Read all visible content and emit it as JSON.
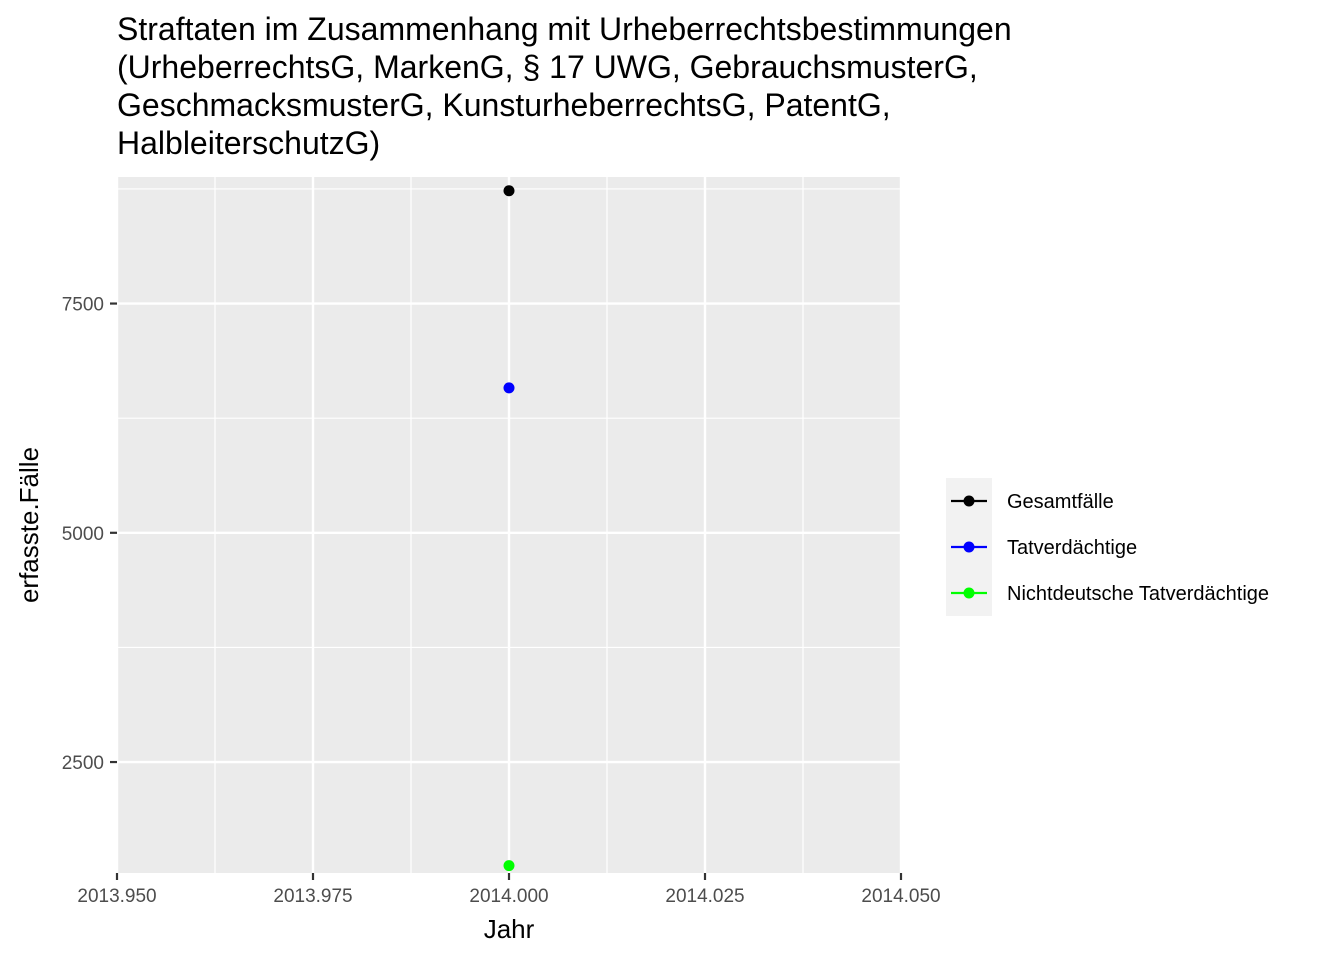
{
  "chart_data": {
    "type": "scatter",
    "title_lines": [
      "Straftaten im Zusammenhang mit Urheberrechtsbestimmungen",
      "(UrheberrechtsG, MarkenG, § 17 UWG, GebrauchsmusterG,",
      "GeschmacksmusterG, KunsturheberrechtsG, PatentG,",
      "HalbleiterschutzG)"
    ],
    "xlabel": "Jahr",
    "ylabel": "erfasste.Fälle",
    "xlim": [
      2013.95,
      2014.05
    ],
    "ylim": [
      1290,
      8880
    ],
    "x_ticks": [
      2013.95,
      2013.975,
      2014.0,
      2014.025,
      2014.05
    ],
    "x_tick_labels": [
      "2013.950",
      "2013.975",
      "2014.000",
      "2014.025",
      "2014.050"
    ],
    "y_ticks": [
      2500,
      5000,
      7500
    ],
    "y_tick_labels": [
      "2500",
      "5000",
      "7500"
    ],
    "grid": true,
    "legend_position": "right",
    "series": [
      {
        "name": "Gesamtfälle",
        "color": "#000000",
        "points": [
          {
            "x": 2014.0,
            "y": 8730
          }
        ]
      },
      {
        "name": "Tatverdächtige",
        "color": "#0000ff",
        "points": [
          {
            "x": 2014.0,
            "y": 6580
          }
        ]
      },
      {
        "name": "Nichtdeutsche Tatverdächtige",
        "color": "#00ff00",
        "points": [
          {
            "x": 2014.0,
            "y": 1370
          }
        ]
      }
    ]
  }
}
